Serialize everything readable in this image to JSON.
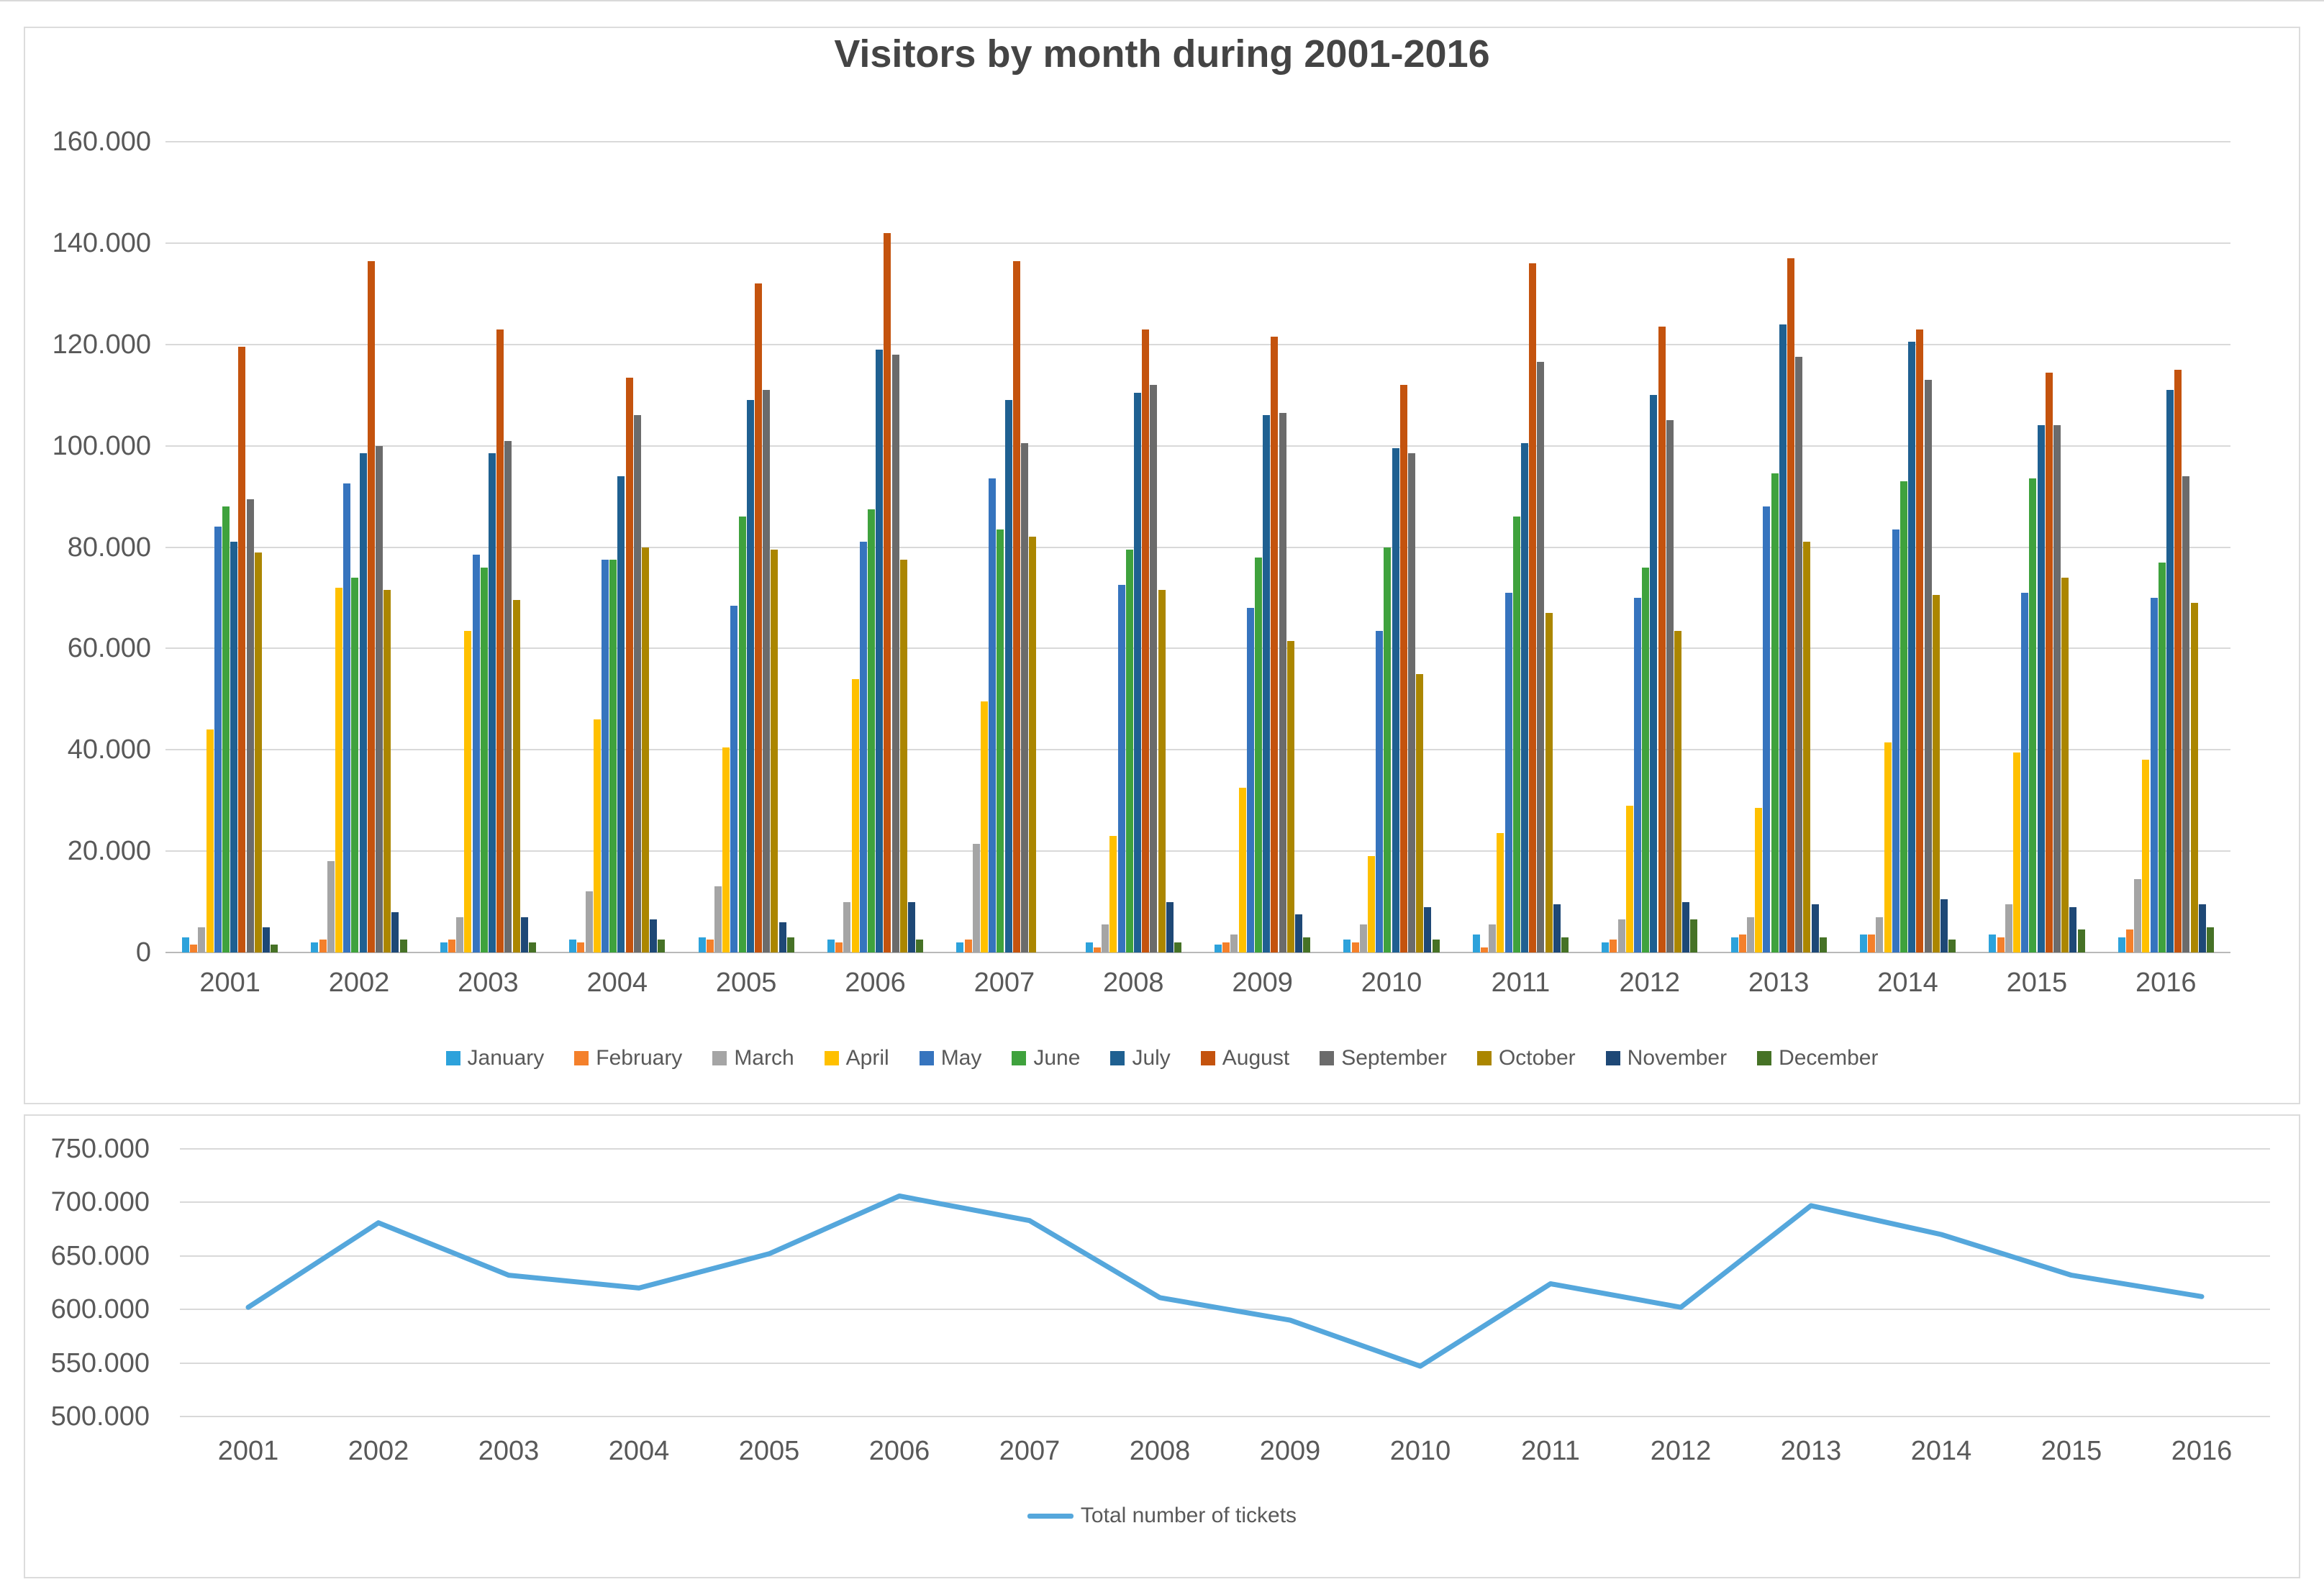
{
  "bar_chart": {
    "title": "Visitors by month during 2001-2016"
  },
  "style": {
    "grid_color": "#d9d9d9",
    "axis_color": "#b9b9b9",
    "text_color": "#595959",
    "title_color": "#444444",
    "panel_border_color": "#dcdcdc",
    "background": "#ffffff"
  },
  "chart_data": [
    {
      "type": "bar",
      "title": "Visitors by month during 2001-2016",
      "categories": [
        "2001",
        "2002",
        "2003",
        "2004",
        "2005",
        "2006",
        "2007",
        "2008",
        "2009",
        "2010",
        "2011",
        "2012",
        "2013",
        "2014",
        "2015",
        "2016"
      ],
      "ylim": [
        0,
        160000
      ],
      "y_tick_step": 20000,
      "y_tick_labels": [
        "0",
        "20.000",
        "40.000",
        "60.000",
        "80.000",
        "100.000",
        "120.000",
        "140.000",
        "160.000"
      ],
      "grid": true,
      "legend_position": "bottom",
      "series": [
        {
          "name": "January",
          "color": "#2da2db",
          "values": [
            3000,
            2000,
            2000,
            2500,
            3000,
            2500,
            2000,
            2000,
            1500,
            2500,
            3500,
            2000,
            3000,
            3500,
            3500,
            3000
          ]
        },
        {
          "name": "February",
          "color": "#f4802b",
          "values": [
            1500,
            2500,
            2500,
            2000,
            2500,
            2000,
            2500,
            1000,
            2000,
            2000,
            1000,
            2500,
            3500,
            3500,
            3000,
            4500
          ]
        },
        {
          "name": "March",
          "color": "#a5a5a5",
          "values": [
            5000,
            18000,
            7000,
            12000,
            13000,
            10000,
            21500,
            5500,
            3500,
            5500,
            5500,
            6500,
            7000,
            7000,
            9500,
            14500
          ]
        },
        {
          "name": "April",
          "color": "#ffc000",
          "values": [
            44000,
            72000,
            63500,
            46000,
            40500,
            54000,
            49500,
            23000,
            32500,
            19000,
            23500,
            29000,
            28500,
            41500,
            39500,
            38000
          ]
        },
        {
          "name": "May",
          "color": "#3674be",
          "values": [
            84000,
            92500,
            78500,
            77500,
            68500,
            81000,
            93500,
            72500,
            68000,
            63500,
            71000,
            70000,
            88000,
            83500,
            71000,
            70000
          ]
        },
        {
          "name": "June",
          "color": "#3fa23d",
          "values": [
            88000,
            74000,
            76000,
            77500,
            86000,
            87500,
            83500,
            79500,
            78000,
            80000,
            86000,
            76000,
            94500,
            93000,
            93500,
            77000
          ]
        },
        {
          "name": "July",
          "color": "#1f6091",
          "values": [
            81000,
            98500,
            98500,
            94000,
            109000,
            119000,
            109000,
            110500,
            106000,
            99500,
            100500,
            110000,
            124000,
            120500,
            104000,
            111000
          ]
        },
        {
          "name": "August",
          "color": "#c4530e",
          "values": [
            119500,
            136500,
            123000,
            113500,
            132000,
            142000,
            136500,
            123000,
            121500,
            112000,
            136000,
            123500,
            137000,
            123000,
            114500,
            115000
          ]
        },
        {
          "name": "September",
          "color": "#6b6b6b",
          "values": [
            89500,
            100000,
            101000,
            106000,
            111000,
            118000,
            100500,
            112000,
            106500,
            98500,
            116500,
            105000,
            117500,
            113000,
            104000,
            94000
          ]
        },
        {
          "name": "October",
          "color": "#ab8600",
          "values": [
            79000,
            71500,
            69500,
            80000,
            79500,
            77500,
            82000,
            71500,
            61500,
            55000,
            67000,
            63500,
            81000,
            70500,
            74000,
            69000
          ]
        },
        {
          "name": "November",
          "color": "#1e4876",
          "values": [
            5000,
            8000,
            7000,
            6500,
            6000,
            10000,
            0,
            10000,
            7500,
            9000,
            9500,
            10000,
            9500,
            10500,
            9000,
            9500
          ]
        },
        {
          "name": "December",
          "color": "#467226",
          "values": [
            1500,
            2500,
            2000,
            2500,
            3000,
            2500,
            0,
            2000,
            3000,
            2500,
            3000,
            6500,
            3000,
            2500,
            4500,
            5000
          ]
        }
      ]
    },
    {
      "type": "line",
      "title": "",
      "categories": [
        "2001",
        "2002",
        "2003",
        "2004",
        "2005",
        "2006",
        "2007",
        "2008",
        "2009",
        "2010",
        "2011",
        "2012",
        "2013",
        "2014",
        "2015",
        "2016"
      ],
      "ylim": [
        500000,
        750000
      ],
      "y_tick_step": 50000,
      "y_tick_labels": [
        "500.000",
        "550.000",
        "600.000",
        "650.000",
        "700.000",
        "750.000"
      ],
      "grid": true,
      "legend_position": "bottom",
      "series": [
        {
          "name": "Total number of tickets",
          "color": "#55a7dc",
          "values": [
            602000,
            681000,
            632000,
            620000,
            652000,
            706000,
            683000,
            611000,
            590000,
            547000,
            624000,
            602000,
            697000,
            670000,
            632000,
            612000
          ]
        }
      ]
    }
  ]
}
